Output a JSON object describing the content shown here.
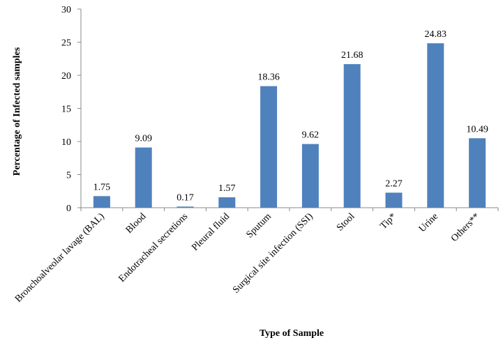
{
  "chart_data": {
    "type": "bar",
    "xlabel": "Type of Sample",
    "ylabel": "Percentage of Infected samples",
    "ylim": [
      0,
      30
    ],
    "yticks": [
      0,
      5,
      10,
      15,
      20,
      25,
      30
    ],
    "categories": [
      "Bronchoalveolar lavage (BAL)",
      "Blood",
      "Endotracheal secretions",
      "Pleural fluid",
      "Sputum",
      "Surgical site infection (SSI)",
      "Stool",
      "Tip*",
      "Urine",
      "Others**"
    ],
    "values": [
      1.75,
      9.09,
      0.17,
      1.57,
      18.36,
      9.62,
      21.68,
      2.27,
      24.83,
      10.49
    ],
    "value_labels": [
      "1.75",
      "9.09",
      "0.17",
      "1.57",
      "18.36",
      "9.62",
      "21.68",
      "2.27",
      "24.83",
      "10.49"
    ],
    "ytick_labels": [
      "0",
      "5",
      "10",
      "15",
      "20",
      "25",
      "30"
    ],
    "bar_color": "#4f81bd",
    "grid": false,
    "legend": "none"
  }
}
